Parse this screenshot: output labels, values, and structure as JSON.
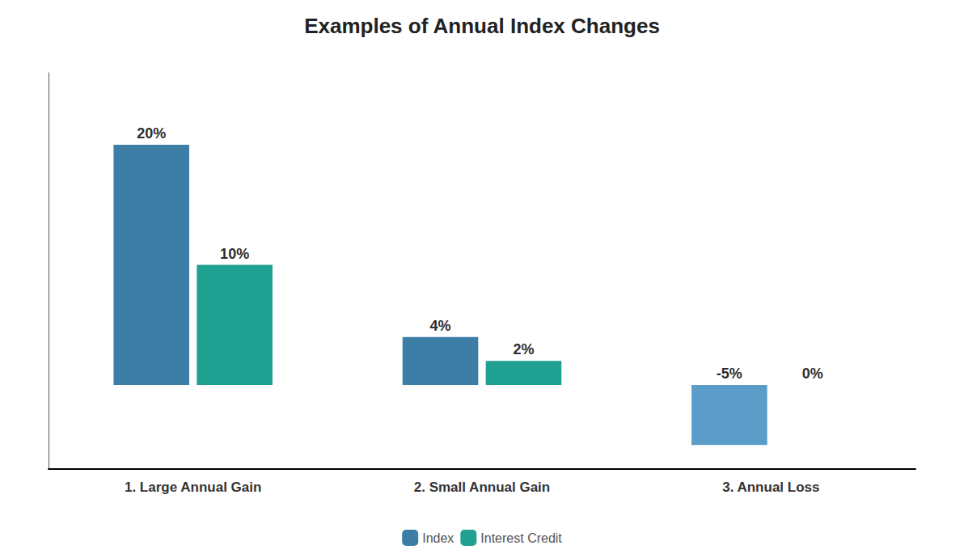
{
  "chart_data": {
    "type": "bar",
    "title": "Examples of Annual Index Changes",
    "categories": [
      "1. Large Annual Gain",
      "2. Small Annual Gain",
      "3. Annual Loss"
    ],
    "series": [
      {
        "name": "Index",
        "color": "#3d7ea6",
        "colors": [
          "#3d7ea6",
          "#3d7ea6",
          "#5b9dc9"
        ],
        "values": [
          20,
          4,
          -5
        ],
        "value_labels": [
          "20%",
          "4%",
          "-5%"
        ]
      },
      {
        "name": "Interest Credit",
        "color": "#1fa090",
        "values": [
          10,
          2,
          0
        ],
        "value_labels": [
          "10%",
          "2%",
          "0%"
        ]
      }
    ],
    "ylim": [
      -7,
      26
    ],
    "grid": false,
    "legend": "bottom",
    "data_labels": true,
    "tick_labels": "x"
  }
}
